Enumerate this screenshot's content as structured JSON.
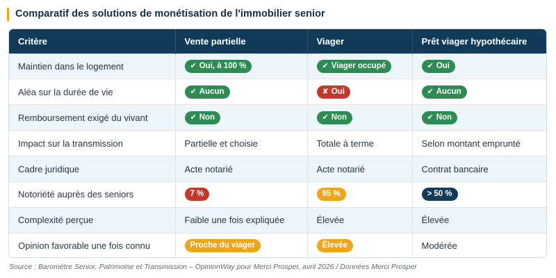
{
  "title": "Comparatif des solutions de monétisation de l'immobilier senior",
  "colors": {
    "accent": "#f0a500",
    "header_bg": "#123a59",
    "row_alt_bg": "#edf4fa",
    "badge_green": "#2e8b53",
    "badge_red": "#c0392b",
    "badge_orange": "#eda51b",
    "badge_navy": "#123a59"
  },
  "table": {
    "headers": [
      "Critère",
      "Vente partielle",
      "Viager",
      "Prêt viager hypothécaire"
    ],
    "rows": [
      {
        "criterion": "Maintien dans le logement",
        "cells": [
          {
            "type": "badge",
            "color": "green",
            "icon": "check-icon",
            "glyph": "✔",
            "text": "Oui, à 100 %"
          },
          {
            "type": "badge",
            "color": "green",
            "icon": "check-icon",
            "glyph": "✔",
            "text": "Viager occupé"
          },
          {
            "type": "badge",
            "color": "green",
            "icon": "check-icon",
            "glyph": "✔",
            "text": "Oui"
          }
        ]
      },
      {
        "criterion": "Aléa sur la durée de vie",
        "cells": [
          {
            "type": "badge",
            "color": "green",
            "icon": "check-icon",
            "glyph": "✔",
            "text": "Aucun"
          },
          {
            "type": "badge",
            "color": "red",
            "icon": "cross-icon",
            "glyph": "✘",
            "text": "Oui"
          },
          {
            "type": "badge",
            "color": "green",
            "icon": "check-icon",
            "glyph": "✔",
            "text": "Aucun"
          }
        ]
      },
      {
        "criterion": "Remboursement exigé du vivant",
        "cells": [
          {
            "type": "badge",
            "color": "green",
            "icon": "check-icon",
            "glyph": "✔",
            "text": "Non"
          },
          {
            "type": "badge",
            "color": "green",
            "icon": "check-icon",
            "glyph": "✔",
            "text": "Non"
          },
          {
            "type": "badge",
            "color": "green",
            "icon": "check-icon",
            "glyph": "✔",
            "text": "Non"
          }
        ]
      },
      {
        "criterion": "Impact sur la transmission",
        "cells": [
          {
            "type": "text",
            "text": "Partielle et choisie"
          },
          {
            "type": "text",
            "text": "Totale à terme"
          },
          {
            "type": "text",
            "text": "Selon montant emprunté"
          }
        ]
      },
      {
        "criterion": "Cadre juridique",
        "cells": [
          {
            "type": "text",
            "text": "Acte notarié"
          },
          {
            "type": "text",
            "text": "Acte notarié"
          },
          {
            "type": "text",
            "text": "Contrat bancaire"
          }
        ]
      },
      {
        "criterion": "Notoriété auprès des seniors",
        "cells": [
          {
            "type": "badge",
            "color": "red",
            "text": "7 %"
          },
          {
            "type": "badge",
            "color": "orange",
            "text": "95 %"
          },
          {
            "type": "badge",
            "color": "navy",
            "text": "> 50 %"
          }
        ]
      },
      {
        "criterion": "Complexité perçue",
        "cells": [
          {
            "type": "text",
            "text": "Faible une fois expliquée"
          },
          {
            "type": "text",
            "text": "Élevée"
          },
          {
            "type": "text",
            "text": "Élevée"
          }
        ]
      },
      {
        "criterion": "Opinion favorable une fois connu",
        "cells": [
          {
            "type": "badge",
            "color": "orange",
            "text": "Proche du viager"
          },
          {
            "type": "badge",
            "color": "orange",
            "text": "Élevée"
          },
          {
            "type": "text",
            "text": "Modérée"
          }
        ]
      }
    ]
  },
  "source": "Source : Baromètre Senior, Patrimoine et Transmission – OpinionWay pour Merci Prosper, avril 2026 / Données Merci Prosper"
}
